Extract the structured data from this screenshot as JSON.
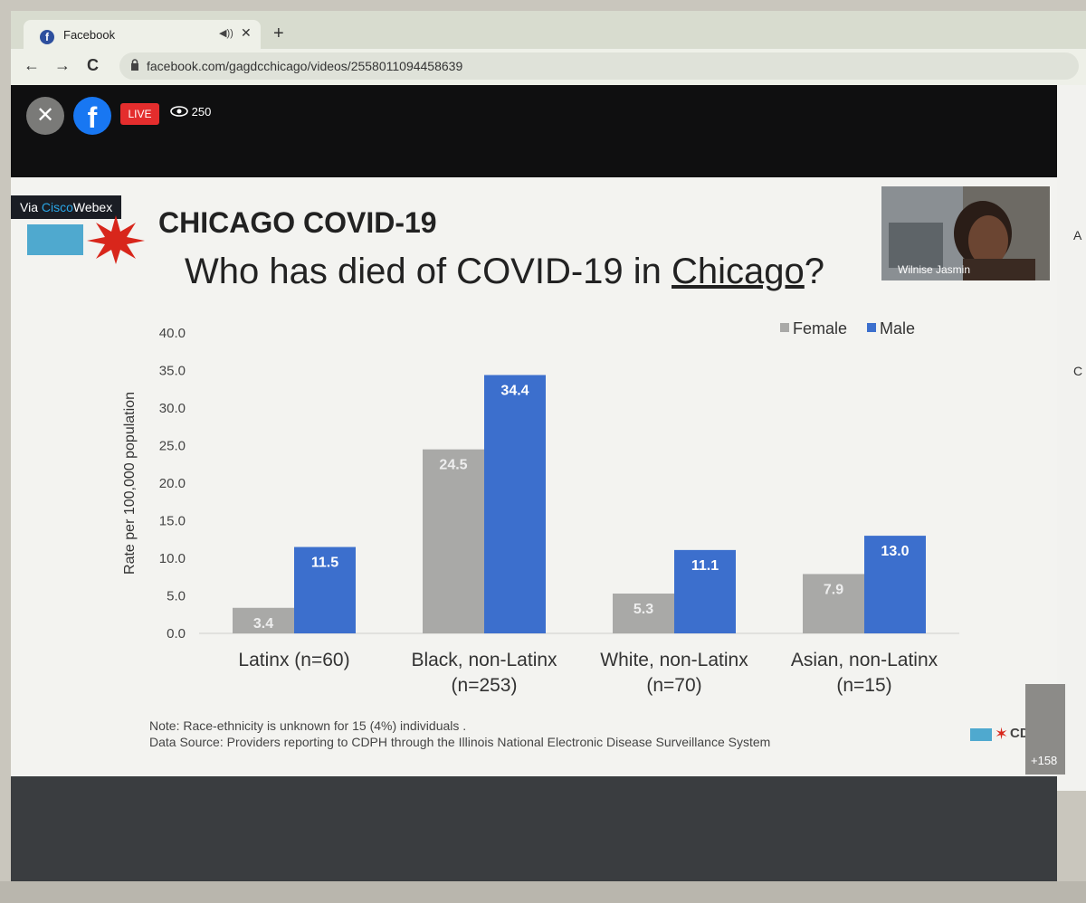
{
  "browser": {
    "tab_title": "Facebook",
    "tab_close": "✕",
    "new_tab": "+",
    "url": "facebook.com/gagdcchicago/videos/2558011094458639",
    "nav_back": "←",
    "nav_forward": "→",
    "nav_reload": "C"
  },
  "player": {
    "close_label": "✕",
    "live_label": "LIVE",
    "viewer_count": "250",
    "more_count": "+158"
  },
  "slide": {
    "via_prefix": "Via ",
    "via_brand_cisco": "Cisco",
    "via_brand_webex": "Webex",
    "brand": "CHICAGO COVID-19",
    "title_prefix": "Who has died of COVID-19 in ",
    "title_link": "Chicago",
    "title_suffix": "?",
    "participant_name": "Wilnise Jasmin",
    "note": "Note: Race-ethnicity is unknown for 15 (4%) individuals .",
    "source": "Data Source:  Providers reporting to CDPH through the Illinois National Electronic Disease Surveillance System",
    "org_logo": "CDPH"
  },
  "chart_data": {
    "type": "bar",
    "ylabel": "Rate per 100,000 population",
    "ylim": [
      0,
      40
    ],
    "yticks": [
      "0.0",
      "5.0",
      "10.0",
      "15.0",
      "20.0",
      "25.0",
      "30.0",
      "35.0",
      "40.0"
    ],
    "categories": [
      [
        "Latinx (n=60)"
      ],
      [
        "Black, non-Latinx",
        "(n=253)"
      ],
      [
        "White, non-Latinx",
        "(n=70)"
      ],
      [
        "Asian, non-Latinx",
        "(n=15)"
      ]
    ],
    "series": [
      {
        "name": "Female",
        "color": "#a9a9a7",
        "values": [
          3.4,
          24.5,
          5.3,
          7.9
        ],
        "labels": [
          "3.4",
          "24.5",
          "5.3",
          "7.9"
        ]
      },
      {
        "name": "Male",
        "color": "#3c6fcd",
        "values": [
          11.5,
          34.4,
          11.1,
          13.0
        ],
        "labels": [
          "11.5",
          "34.4",
          "11.1",
          "13.0"
        ]
      }
    ],
    "legend_position": "top-right",
    "grid": false
  }
}
